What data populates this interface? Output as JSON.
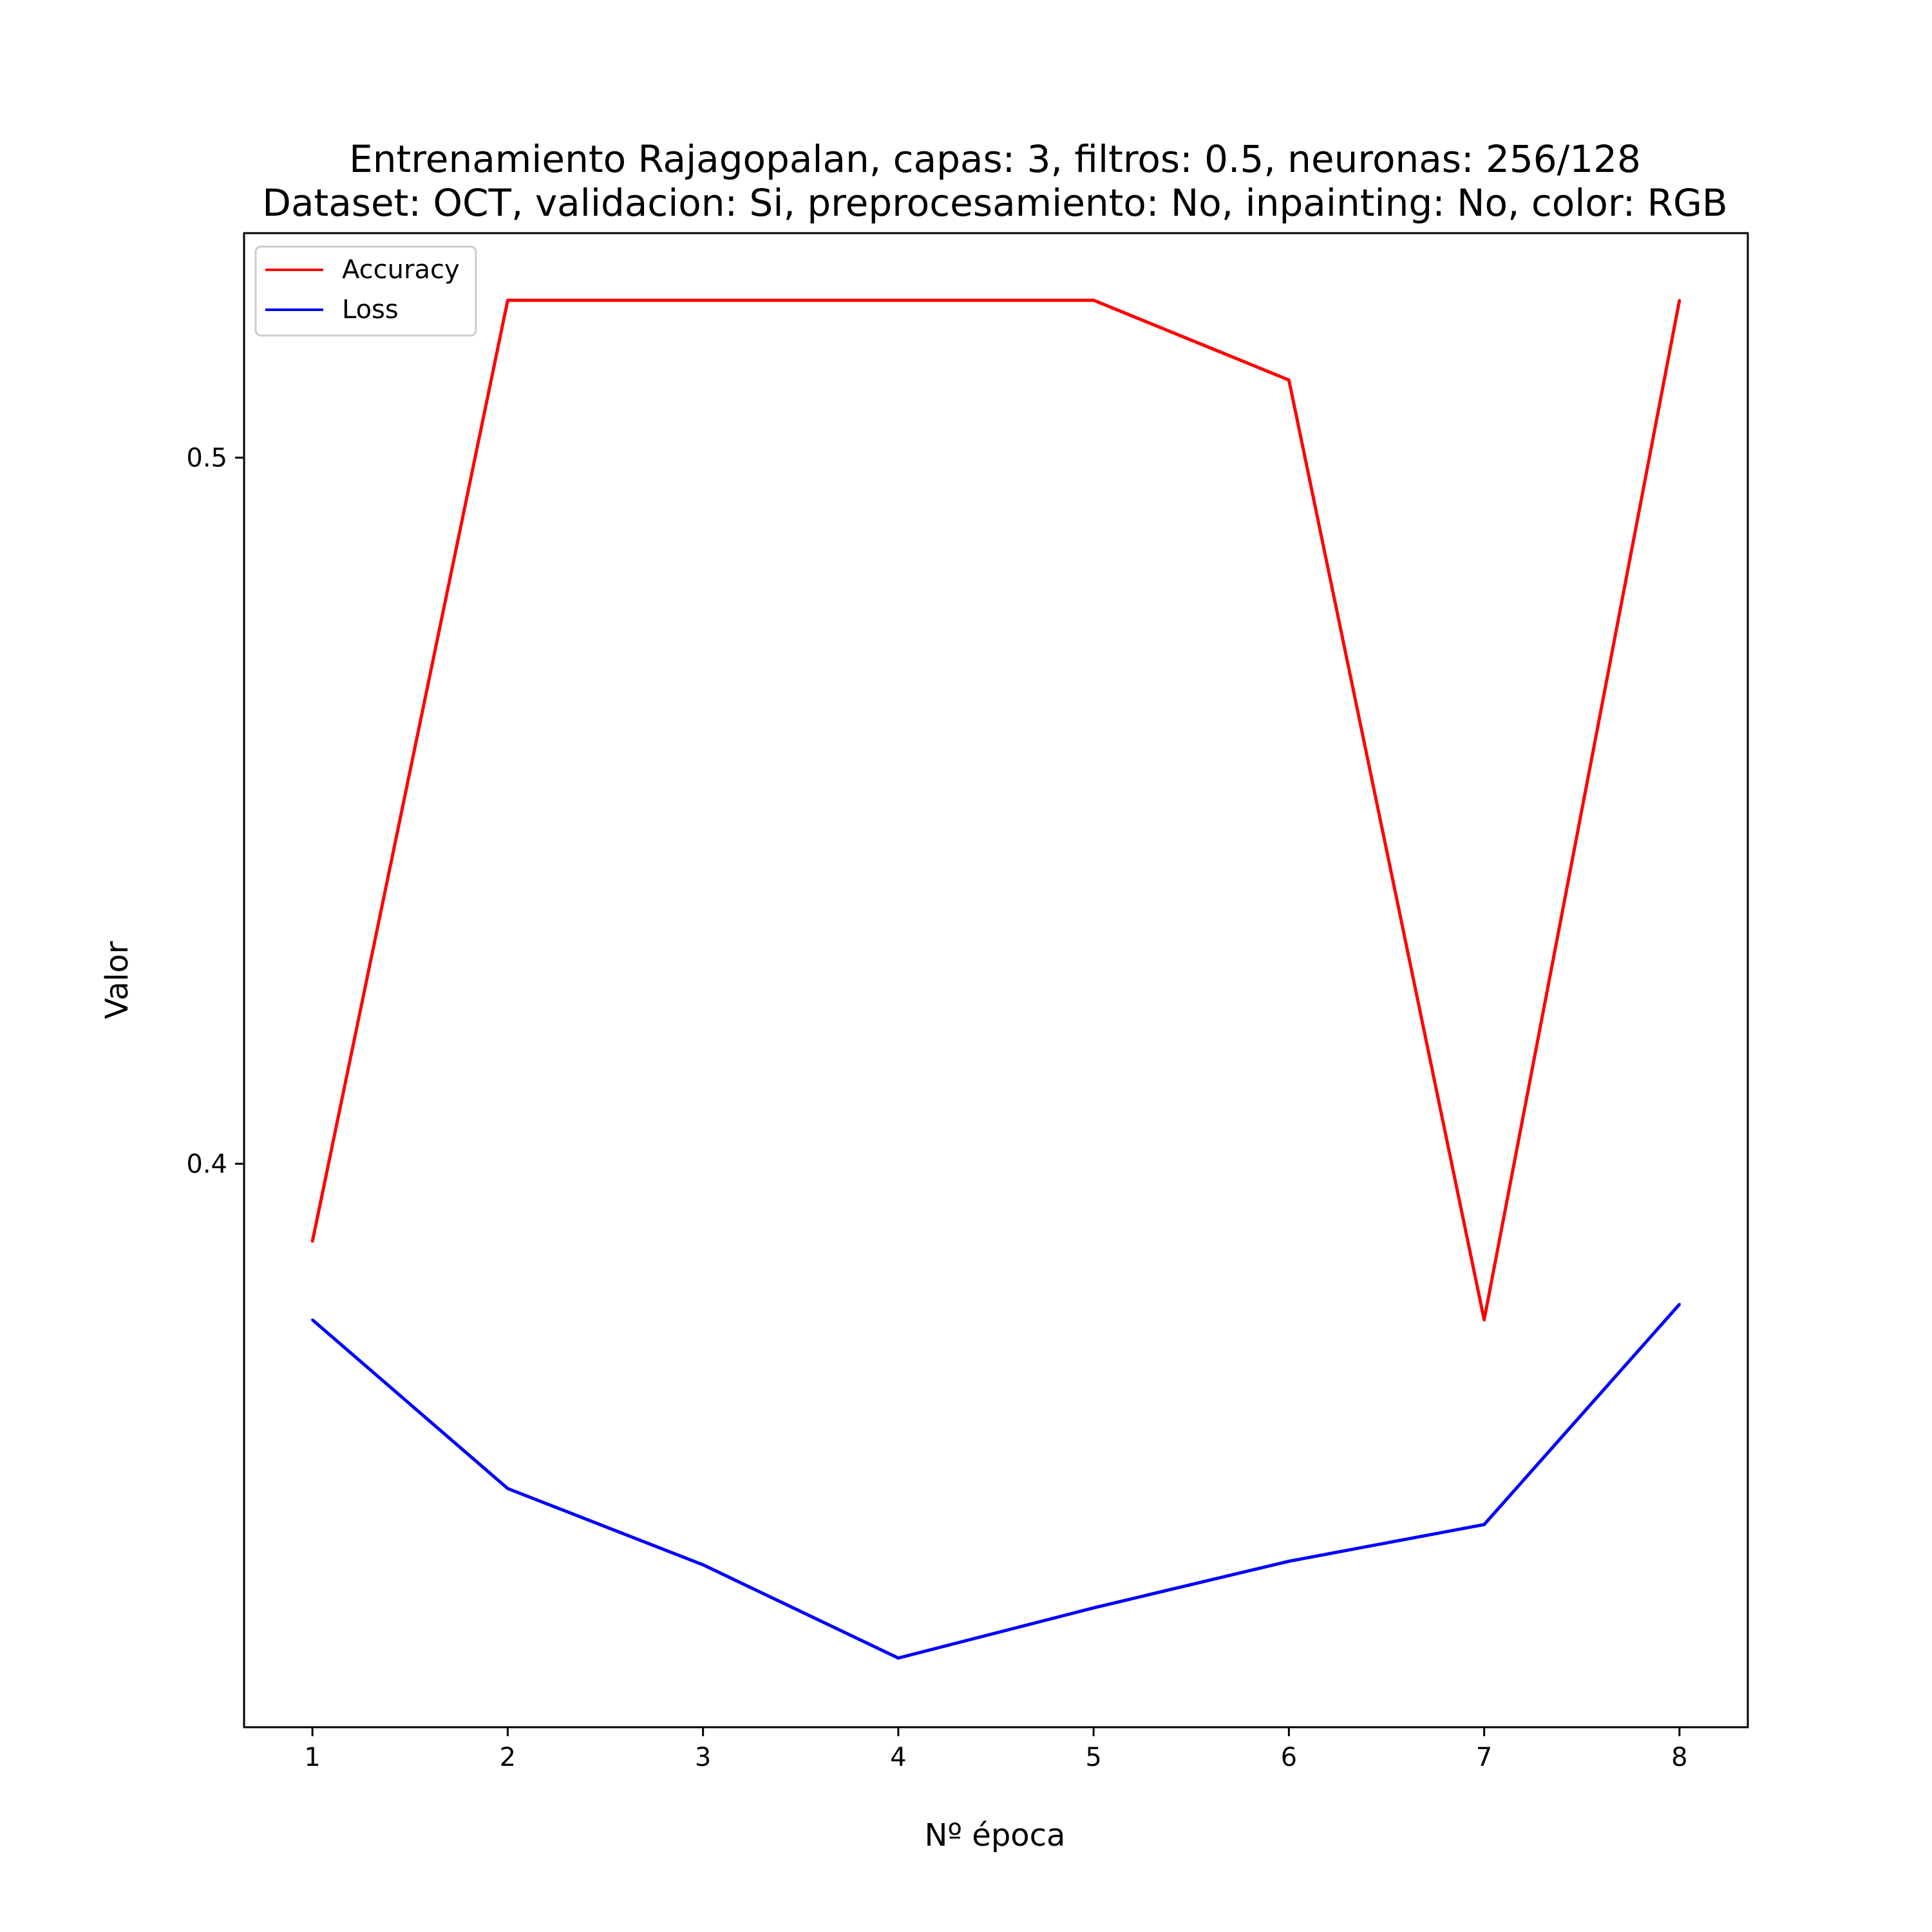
{
  "chart_data": {
    "type": "line",
    "title": "Entrenamiento Rajagopalan, capas: 3, filtros: 0.5, neuronas: 256/128",
    "subtitle": "Dataset: OCT, validacion: Si, preprocesamiento: No, inpainting: No, color: RGB",
    "xlabel": "Nº época",
    "ylabel": "Valor",
    "x": [
      1,
      2,
      3,
      4,
      5,
      6,
      7,
      8
    ],
    "xticks": [
      "1",
      "2",
      "3",
      "4",
      "5",
      "6",
      "7",
      "8"
    ],
    "yticks": [
      "0.4",
      "0.5"
    ],
    "xlim": [
      0.65,
      8.35
    ],
    "ylim": [
      0.3202,
      0.5318
    ],
    "legend_position": "upper-left",
    "grid": false,
    "series": [
      {
        "name": "Accuracy",
        "color": "#ff0000",
        "values": [
          0.389,
          0.5223,
          0.5223,
          0.5223,
          0.5223,
          0.511,
          0.3779,
          0.5223
        ]
      },
      {
        "name": "Loss",
        "color": "#0000ff",
        "values": [
          0.3779,
          0.354,
          0.3432,
          0.33,
          0.3371,
          0.3437,
          0.3489,
          0.3801
        ]
      }
    ]
  }
}
